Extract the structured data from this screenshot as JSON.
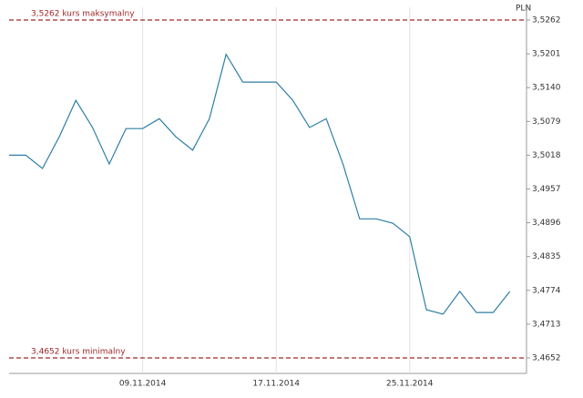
{
  "chart_data": {
    "type": "line",
    "y_label": "PLN",
    "x": [
      "2014-11-01",
      "2014-11-02",
      "2014-11-03",
      "2014-11-04",
      "2014-11-05",
      "2014-11-06",
      "2014-11-07",
      "2014-11-08",
      "2014-11-09",
      "2014-11-10",
      "2014-11-11",
      "2014-11-12",
      "2014-11-13",
      "2014-11-14",
      "2014-11-15",
      "2014-11-16",
      "2014-11-17",
      "2014-11-18",
      "2014-11-19",
      "2014-11-20",
      "2014-11-21",
      "2014-11-22",
      "2014-11-23",
      "2014-11-24",
      "2014-11-25",
      "2014-11-26",
      "2014-11-27",
      "2014-11-28",
      "2014-11-29",
      "2014-11-30",
      "2014-12-01"
    ],
    "series": [
      {
        "name": "PLN",
        "color": "#2f7fa6",
        "values": [
          3.5018,
          3.5018,
          3.4994,
          3.5051,
          3.5117,
          3.5068,
          3.5002,
          3.5066,
          3.5066,
          3.5084,
          3.5051,
          3.5027,
          3.5084,
          3.52,
          3.515,
          3.515,
          3.515,
          3.5117,
          3.5068,
          3.5084,
          3.5002,
          3.4903,
          3.4903,
          3.4895,
          3.4871,
          3.4739,
          3.4731,
          3.4772,
          3.4734,
          3.4734,
          3.4772
        ]
      }
    ],
    "xlim": [
      "2014-11-01",
      "2014-12-02"
    ],
    "xticks": [
      {
        "value": "2014-11-09",
        "label": "09.11.2014"
      },
      {
        "value": "2014-11-17",
        "label": "17.11.2014"
      },
      {
        "value": "2014-11-25",
        "label": "25.11.2014"
      }
    ],
    "ylim": [
      3.4652,
      3.5262
    ],
    "yticks": [
      {
        "value": 3.4652,
        "label": "3,4652"
      },
      {
        "value": 3.4713,
        "label": "3,4713"
      },
      {
        "value": 3.4774,
        "label": "3,4774"
      },
      {
        "value": 3.4835,
        "label": "3,4835"
      },
      {
        "value": 3.4896,
        "label": "3,4896"
      },
      {
        "value": 3.4957,
        "label": "3,4957"
      },
      {
        "value": 3.5018,
        "label": "3,5018"
      },
      {
        "value": 3.5079,
        "label": "3,5079"
      },
      {
        "value": 3.514,
        "label": "3,5140"
      },
      {
        "value": 3.5201,
        "label": "3,5201"
      },
      {
        "value": 3.5262,
        "label": "3,5262"
      }
    ],
    "reference_lines": [
      {
        "value": 3.5262,
        "label": "3,5262 kurs maksymalny",
        "color": "#a0282a"
      },
      {
        "value": 3.4652,
        "label": "3,4652 kurs minimalny",
        "color": "#a0282a"
      }
    ],
    "grid": true
  }
}
